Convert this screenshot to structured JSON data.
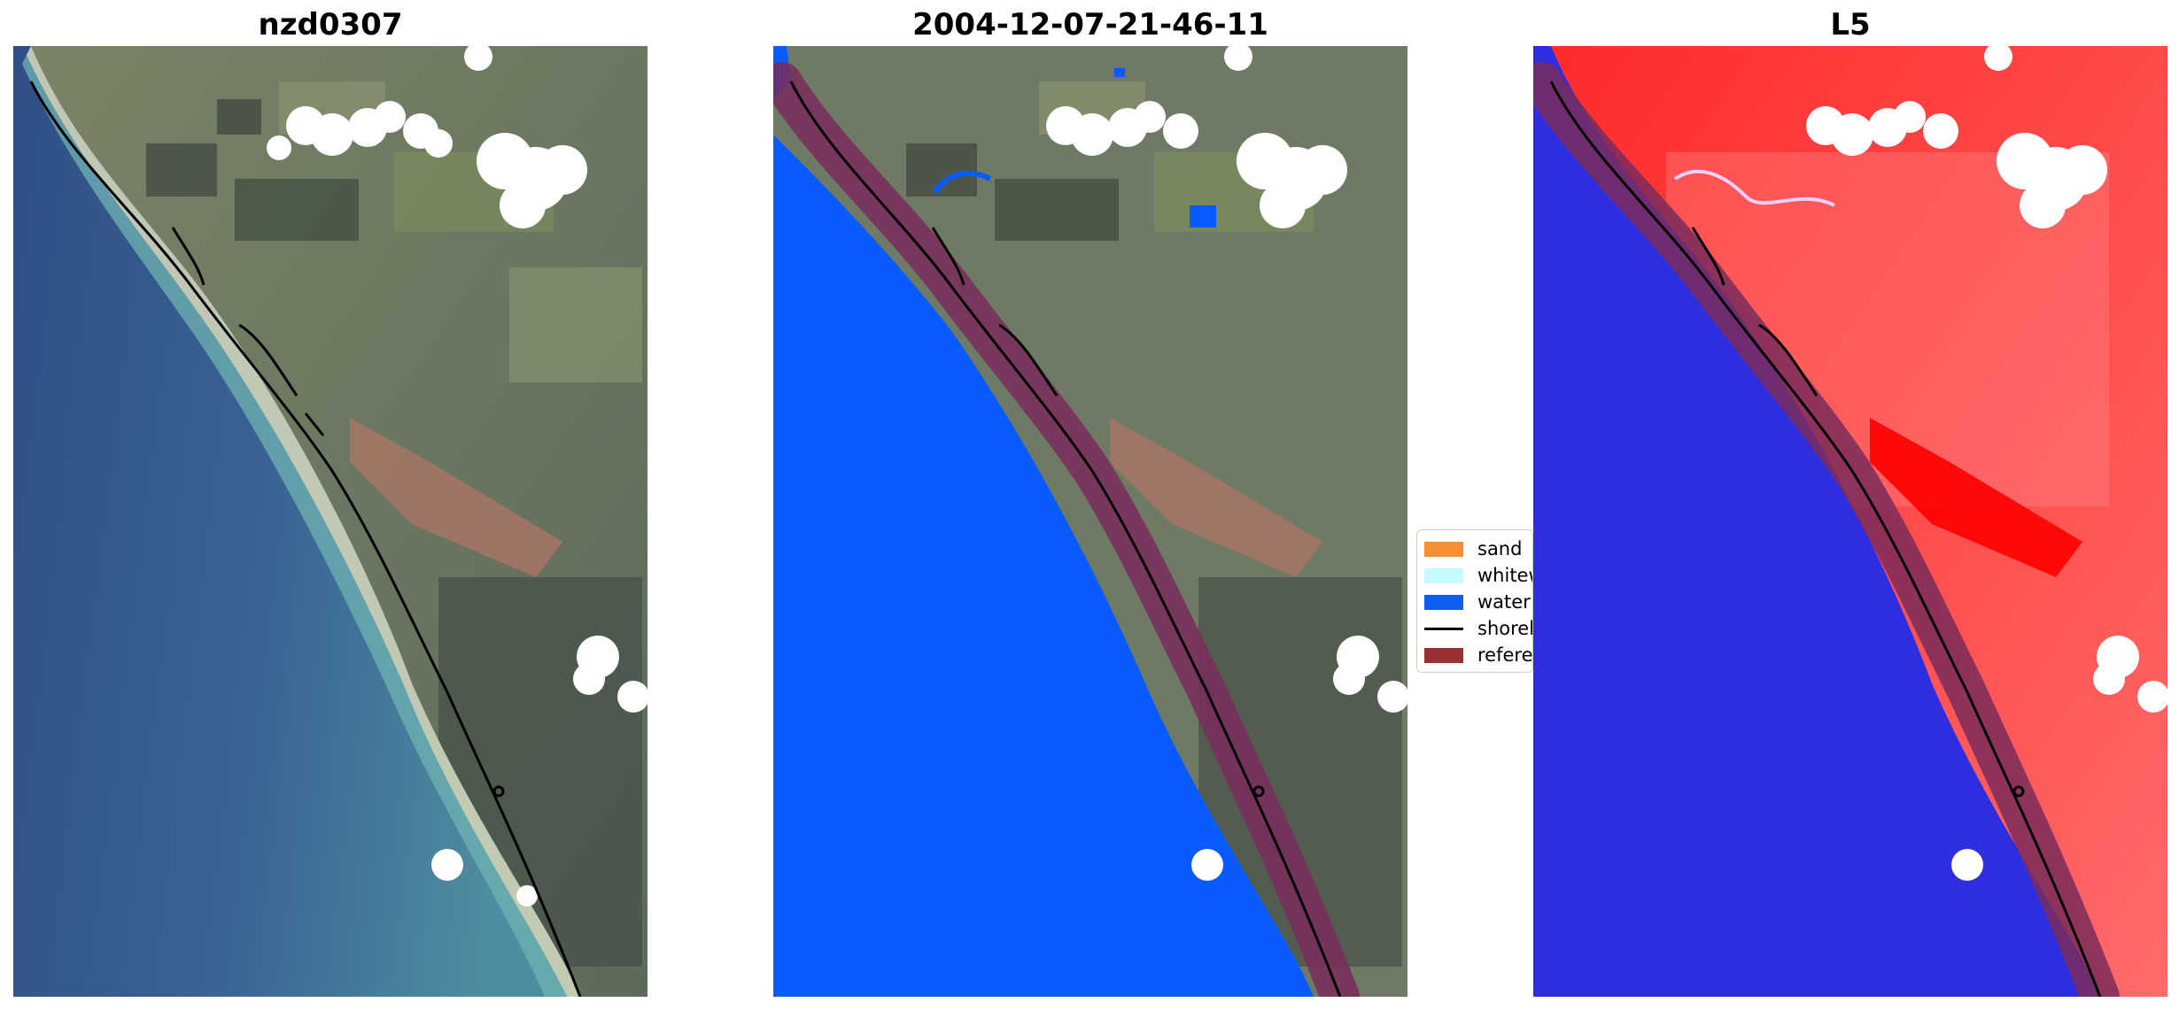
{
  "panels": [
    {
      "title": "nzd0307"
    },
    {
      "title": "2004-12-07-21-46-11"
    },
    {
      "title": "L5"
    }
  ],
  "legend": {
    "items": [
      {
        "label": "sand",
        "color": "#f68e37",
        "kind": "patch"
      },
      {
        "label": "whitewater",
        "color": "#c5fbff",
        "kind": "patch"
      },
      {
        "label": "water",
        "color": "#0f5ef4",
        "kind": "patch"
      },
      {
        "label": "shoreline",
        "color": "#000000",
        "kind": "line"
      },
      {
        "label": "reference shoreline buffer",
        "color": "#9a3034",
        "kind": "patch"
      }
    ]
  },
  "colors": {
    "water_class": "#0a5bff",
    "land_rgb": "#6d7a62",
    "sea_rgb": "#35568a",
    "index_land": "#ff1a1a",
    "index_water": "#2e2ee0",
    "buffer": "#7a2c5c"
  }
}
